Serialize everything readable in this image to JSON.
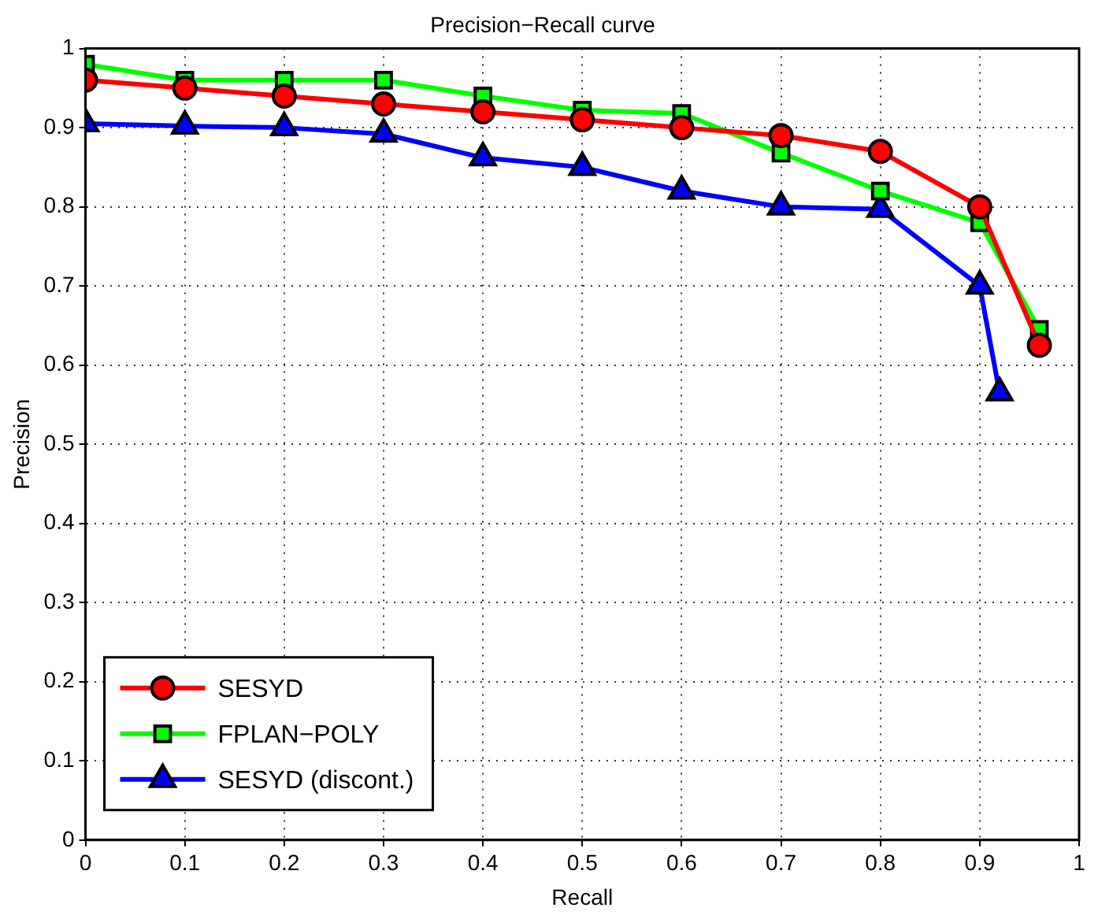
{
  "chart_data": {
    "type": "line",
    "title": "Precision−Recall curve",
    "xlabel": "Recall",
    "ylabel": "Precision",
    "xlim": [
      0,
      1
    ],
    "xticks": [
      0,
      0.1,
      0.2,
      0.3,
      0.4,
      0.5,
      0.6,
      0.7,
      0.8,
      0.9,
      1
    ],
    "ylim": [
      0,
      1
    ],
    "yticks": [
      0,
      0.1,
      0.2,
      0.3,
      0.4,
      0.5,
      0.6,
      0.7,
      0.8,
      0.9,
      1
    ],
    "grid": true,
    "legend": "bottom left",
    "line_style": "solid",
    "series": [
      {
        "name": "SESYD",
        "color": "#ff0000",
        "marker": "circle",
        "x": [
          0,
          0.1,
          0.2,
          0.3,
          0.4,
          0.5,
          0.6,
          0.7,
          0.8,
          0.9,
          0.96
        ],
        "values": [
          0.96,
          0.95,
          0.94,
          0.93,
          0.92,
          0.91,
          0.9,
          0.89,
          0.87,
          0.8,
          0.625
        ]
      },
      {
        "name": "FPLAN−POLY",
        "color": "#00ff00",
        "marker": "square",
        "x": [
          0,
          0.1,
          0.2,
          0.3,
          0.4,
          0.5,
          0.6,
          0.7,
          0.8,
          0.9,
          0.96
        ],
        "values": [
          0.98,
          0.96,
          0.96,
          0.96,
          0.94,
          0.922,
          0.918,
          0.868,
          0.82,
          0.78,
          0.645
        ]
      },
      {
        "name": "SESYD (discont.)",
        "color": "#0000ff",
        "marker": "triangle",
        "x": [
          0,
          0.1,
          0.2,
          0.3,
          0.4,
          0.5,
          0.6,
          0.7,
          0.8,
          0.9,
          0.92
        ],
        "values": [
          0.905,
          0.902,
          0.9,
          0.892,
          0.862,
          0.85,
          0.82,
          0.8,
          0.797,
          0.7,
          0.565
        ]
      }
    ]
  }
}
